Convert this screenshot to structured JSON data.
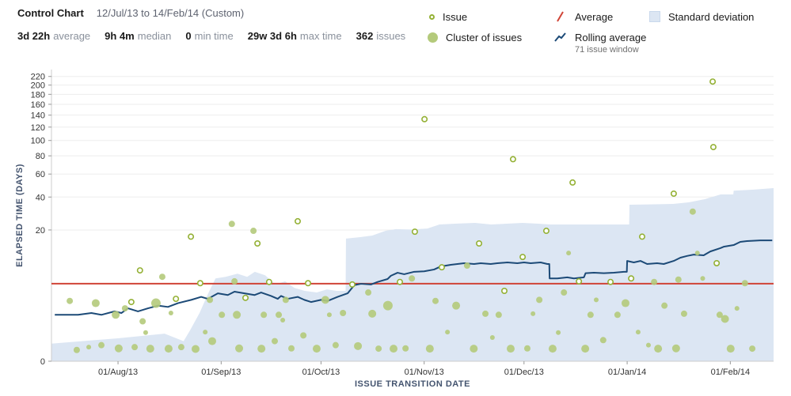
{
  "header": {
    "title": "Control Chart",
    "date_range": "12/Jul/13 to 14/Feb/14 (Custom)",
    "stats": [
      {
        "value": "3d 22h",
        "label": "average"
      },
      {
        "value": "9h 4m",
        "label": "median"
      },
      {
        "value": "0",
        "label": "min time"
      },
      {
        "value": "29w 3d 6h",
        "label": "max time"
      },
      {
        "value": "362",
        "label": "issues"
      }
    ]
  },
  "legend": {
    "issue": "Issue",
    "cluster": "Cluster of issues",
    "average": "Average",
    "rolling": "Rolling average",
    "rolling_sub": "71 issue window",
    "stddev": "Standard deviation"
  },
  "colors": {
    "issue": "#94b135",
    "cluster": "#b4ca7b",
    "average": "#d04437",
    "rolling": "#1c4a77",
    "band": "#dce6f3"
  },
  "chart_data": {
    "type": "scatter",
    "title": "Control Chart",
    "xlabel": "ISSUE TRANSITION DATE",
    "ylabel": "ELAPSED TIME (DAYS)",
    "x_start": "12/Jul/13",
    "x_end": "14/Feb/14",
    "x_days": 217,
    "y_scale": "power 0.323 (compressed at high values)",
    "ylim": [
      0,
      230
    ],
    "y_ticks": [
      0,
      20,
      40,
      60,
      80,
      100,
      120,
      140,
      160,
      180,
      200,
      220
    ],
    "x_ticks": [
      {
        "label": "01/Aug/13",
        "day": 20
      },
      {
        "label": "01/Sep/13",
        "day": 51
      },
      {
        "label": "01/Oct/13",
        "day": 81
      },
      {
        "label": "01/Nov/13",
        "day": 112
      },
      {
        "label": "01/Dec/13",
        "day": 142
      },
      {
        "label": "01/Jan/14",
        "day": 173
      },
      {
        "label": "01/Feb/14",
        "day": 204
      }
    ],
    "average": 3.92,
    "rolling_average": [
      [
        1,
        0.8
      ],
      [
        8,
        0.8
      ],
      [
        12,
        0.9
      ],
      [
        15,
        0.8
      ],
      [
        19,
        1.0
      ],
      [
        21,
        0.9
      ],
      [
        23,
        1.2
      ],
      [
        26,
        1.0
      ],
      [
        29,
        1.2
      ],
      [
        32,
        1.4
      ],
      [
        35,
        1.3
      ],
      [
        38,
        1.6
      ],
      [
        42,
        1.9
      ],
      [
        45,
        2.2
      ],
      [
        47,
        2.0
      ],
      [
        50,
        2.6
      ],
      [
        53,
        2.4
      ],
      [
        55,
        2.8
      ],
      [
        58,
        2.6
      ],
      [
        61,
        2.4
      ],
      [
        63,
        2.7
      ],
      [
        66,
        2.3
      ],
      [
        68,
        2.0
      ],
      [
        69,
        2.3
      ],
      [
        71,
        2.0
      ],
      [
        74,
        2.2
      ],
      [
        76,
        1.9
      ],
      [
        78,
        1.7
      ],
      [
        81,
        1.9
      ],
      [
        83,
        1.8
      ],
      [
        86,
        2.2
      ],
      [
        89,
        2.6
      ],
      [
        91,
        3.7
      ],
      [
        93,
        3.9
      ],
      [
        96,
        3.8
      ],
      [
        98,
        4.2
      ],
      [
        101,
        4.7
      ],
      [
        102,
        5.3
      ],
      [
        104,
        5.9
      ],
      [
        106,
        5.6
      ],
      [
        109,
        6.1
      ],
      [
        112,
        6.2
      ],
      [
        115,
        6.6
      ],
      [
        117,
        7.3
      ],
      [
        120,
        7.7
      ],
      [
        122,
        7.9
      ],
      [
        124,
        8.1
      ],
      [
        127,
        7.9
      ],
      [
        129,
        8.1
      ],
      [
        132,
        7.9
      ],
      [
        134,
        8.1
      ],
      [
        137,
        8.3
      ],
      [
        140,
        8.1
      ],
      [
        142,
        8.3
      ],
      [
        144,
        8.1
      ],
      [
        147,
        8.3
      ],
      [
        149,
        7.9
      ],
      [
        149.6,
        7.9
      ],
      [
        149.7,
        4.8
      ],
      [
        152,
        4.8
      ],
      [
        155,
        5.0
      ],
      [
        157,
        4.8
      ],
      [
        160,
        5.0
      ],
      [
        160.5,
        5.8
      ],
      [
        163,
        5.9
      ],
      [
        166,
        5.8
      ],
      [
        169,
        5.9
      ],
      [
        172,
        6.1
      ],
      [
        172.9,
        6.1
      ],
      [
        173,
        8.7
      ],
      [
        175,
        8.3
      ],
      [
        177,
        8.7
      ],
      [
        179,
        7.9
      ],
      [
        182,
        8.1
      ],
      [
        184,
        7.9
      ],
      [
        187,
        8.7
      ],
      [
        189,
        9.6
      ],
      [
        191,
        10.1
      ],
      [
        193,
        10.5
      ],
      [
        196,
        10.3
      ],
      [
        198,
        11.5
      ],
      [
        201,
        12.6
      ],
      [
        202,
        13.1
      ],
      [
        205,
        13.7
      ],
      [
        207,
        14.9
      ],
      [
        209,
        15.2
      ],
      [
        213,
        15.5
      ],
      [
        216.6,
        15.5
      ]
    ],
    "std_dev_band": [
      [
        0,
        0.04
      ],
      [
        20,
        0.09
      ],
      [
        34,
        0.16
      ],
      [
        39.7,
        0.06
      ],
      [
        41.6,
        0.22
      ],
      [
        44.5,
        0.9
      ],
      [
        47,
        2.5
      ],
      [
        49.3,
        4.8
      ],
      [
        52.3,
        5.1
      ],
      [
        55.9,
        5.7
      ],
      [
        58.8,
        5.1
      ],
      [
        61.1,
        6.1
      ],
      [
        64.2,
        5.4
      ],
      [
        67.3,
        3.8
      ],
      [
        70.2,
        4.3
      ],
      [
        73,
        3.3
      ],
      [
        76.1,
        2.9
      ],
      [
        79.7,
        2.7
      ],
      [
        82.8,
        3.1
      ],
      [
        85.7,
        2.9
      ],
      [
        88.4,
        2.9
      ],
      [
        88.5,
        16.2
      ],
      [
        92.8,
        16.8
      ],
      [
        96.4,
        17.5
      ],
      [
        100.4,
        19.6
      ],
      [
        103.5,
        20.4
      ],
      [
        108.3,
        20.2
      ],
      [
        113,
        20.7
      ],
      [
        116.6,
        22.7
      ],
      [
        121.3,
        23.1
      ],
      [
        127.3,
        23.5
      ],
      [
        132.1,
        22.7
      ],
      [
        136.8,
        23.1
      ],
      [
        141.6,
        23.5
      ],
      [
        146.3,
        23.1
      ],
      [
        149.9,
        22.7
      ],
      [
        173.6,
        22.7
      ],
      [
        173.7,
        34.5
      ],
      [
        179.6,
        34.7
      ],
      [
        186.8,
        35
      ],
      [
        191.5,
        36.1
      ],
      [
        196.3,
        38.4
      ],
      [
        201.1,
        42
      ],
      [
        204.9,
        42
      ],
      [
        205,
        45
      ],
      [
        210.6,
        45.8
      ],
      [
        217,
        47.1
      ]
    ],
    "points": [
      [
        5.5,
        1.8,
        "c",
        4
      ],
      [
        7.6,
        0.01,
        "c",
        4
      ],
      [
        11.2,
        0.02,
        "c",
        3
      ],
      [
        13.3,
        1.6,
        "c",
        5
      ],
      [
        15,
        0.03,
        "c",
        4
      ],
      [
        19.3,
        0.8,
        "c",
        5
      ],
      [
        20.2,
        0.015,
        "c",
        5
      ],
      [
        22.1,
        1.2,
        "c",
        4
      ],
      [
        24,
        1.7,
        "i",
        0
      ],
      [
        25,
        0.02,
        "c",
        4
      ],
      [
        26.6,
        6.4,
        "i",
        0
      ],
      [
        27.4,
        0.5,
        "c",
        4
      ],
      [
        28.3,
        0.18,
        "c",
        3
      ],
      [
        29.7,
        0.014,
        "c",
        5
      ],
      [
        31.4,
        1.6,
        "c",
        6
      ],
      [
        33.3,
        5.1,
        "c",
        4
      ],
      [
        35.2,
        0.014,
        "c",
        5
      ],
      [
        35.9,
        0.9,
        "c",
        3
      ],
      [
        37.4,
        2,
        "i",
        0
      ],
      [
        39,
        0.02,
        "c",
        4
      ],
      [
        41.9,
        17,
        "i",
        0
      ],
      [
        43.3,
        0.013,
        "c",
        5
      ],
      [
        44.7,
        4,
        "i",
        0
      ],
      [
        46.2,
        0.19,
        "c",
        3
      ],
      [
        47.6,
        1.9,
        "c",
        4
      ],
      [
        48.3,
        0.06,
        "c",
        5
      ],
      [
        51.2,
        0.8,
        "c",
        4
      ],
      [
        54.2,
        23,
        "c",
        4
      ],
      [
        55,
        4.3,
        "c",
        4
      ],
      [
        55.7,
        0.8,
        "c",
        5
      ],
      [
        56.4,
        0.015,
        "c",
        5
      ],
      [
        58.3,
        2.1,
        "i",
        0
      ],
      [
        60.7,
        19.6,
        "c",
        4
      ],
      [
        61.9,
        14.3,
        "i",
        0
      ],
      [
        63.1,
        0.014,
        "c",
        5
      ],
      [
        63.8,
        0.8,
        "c",
        4
      ],
      [
        65.4,
        4.2,
        "i",
        0
      ],
      [
        67.1,
        0.06,
        "c",
        4
      ],
      [
        68.3,
        0.8,
        "c",
        4
      ],
      [
        69.5,
        0.55,
        "c",
        3
      ],
      [
        70.4,
        1.9,
        "c",
        4
      ],
      [
        72.1,
        0.015,
        "c",
        4
      ],
      [
        74,
        24.4,
        "i",
        0
      ],
      [
        75.7,
        0.13,
        "c",
        4
      ],
      [
        77.1,
        4,
        "i",
        0
      ],
      [
        79.7,
        0.014,
        "c",
        5
      ],
      [
        82.3,
        1.9,
        "c",
        5
      ],
      [
        83.5,
        0.8,
        "c",
        3
      ],
      [
        85.4,
        0.03,
        "c",
        4
      ],
      [
        87.6,
        0.9,
        "c",
        4
      ],
      [
        90.4,
        3.8,
        "i",
        0
      ],
      [
        92.1,
        0.025,
        "c",
        5
      ],
      [
        95.2,
        2.7,
        "c",
        4
      ],
      [
        96.4,
        0.86,
        "c",
        5
      ],
      [
        98.3,
        0.014,
        "c",
        4
      ],
      [
        101.1,
        1.4,
        "c",
        6
      ],
      [
        102.8,
        0.014,
        "c",
        5
      ],
      [
        104.7,
        4.2,
        "i",
        0
      ],
      [
        106.4,
        0.015,
        "c",
        4
      ],
      [
        108.3,
        4.8,
        "c",
        4
      ],
      [
        109.2,
        19.2,
        "i",
        0
      ],
      [
        112.1,
        133,
        "i",
        0
      ],
      [
        113.7,
        0.014,
        "c",
        5
      ],
      [
        115.4,
        1.8,
        "c",
        4
      ],
      [
        117.3,
        7.1,
        "i",
        0
      ],
      [
        119,
        0.19,
        "c",
        3
      ],
      [
        121.6,
        1.4,
        "c",
        5
      ],
      [
        124.9,
        7.5,
        "c",
        4
      ],
      [
        126.9,
        0.014,
        "c",
        5
      ],
      [
        128.5,
        14.3,
        "i",
        0
      ],
      [
        130.4,
        0.86,
        "c",
        4
      ],
      [
        132.5,
        0.1,
        "c",
        3
      ],
      [
        134.4,
        0.8,
        "c",
        4
      ],
      [
        136.1,
        2.9,
        "i",
        0
      ],
      [
        138,
        0.014,
        "c",
        5
      ],
      [
        138.7,
        76,
        "i",
        0
      ],
      [
        141.6,
        9.8,
        "i",
        0
      ],
      [
        143,
        0.015,
        "c",
        4
      ],
      [
        144.7,
        0.86,
        "c",
        3
      ],
      [
        146.6,
        1.9,
        "c",
        4
      ],
      [
        148.7,
        19.6,
        "i",
        0
      ],
      [
        150.6,
        0.014,
        "c",
        5
      ],
      [
        152.3,
        0.18,
        "c",
        3
      ],
      [
        154,
        2.7,
        "c",
        4
      ],
      [
        155.4,
        11,
        "c",
        3
      ],
      [
        156.6,
        52,
        "i",
        0
      ],
      [
        158.5,
        4.3,
        "i",
        0
      ],
      [
        160.4,
        0.014,
        "c",
        5
      ],
      [
        162,
        0.8,
        "c",
        4
      ],
      [
        163.7,
        1.9,
        "c",
        3
      ],
      [
        165.8,
        0.07,
        "c",
        4
      ],
      [
        168,
        4.2,
        "i",
        0
      ],
      [
        170.1,
        0.8,
        "c",
        4
      ],
      [
        172.5,
        1.6,
        "c",
        5
      ],
      [
        174.2,
        4.8,
        "i",
        0
      ],
      [
        176.3,
        0.19,
        "c",
        3
      ],
      [
        177.5,
        17,
        "i",
        0
      ],
      [
        179.4,
        0.03,
        "c",
        3
      ],
      [
        181.1,
        4.2,
        "c",
        4
      ],
      [
        182.3,
        0.014,
        "c",
        5
      ],
      [
        184.2,
        1.4,
        "c",
        4
      ],
      [
        187,
        42.6,
        "i",
        0
      ],
      [
        187.7,
        0.015,
        "c",
        5
      ],
      [
        188.4,
        4.6,
        "c",
        4
      ],
      [
        190.1,
        0.86,
        "c",
        4
      ],
      [
        192.7,
        30,
        "c",
        4
      ],
      [
        194.1,
        11,
        "c",
        3
      ],
      [
        195.7,
        4.8,
        "c",
        3
      ],
      [
        198.7,
        208,
        "i",
        0
      ],
      [
        198.9,
        91,
        "i",
        0
      ],
      [
        199.9,
        8.1,
        "i",
        0
      ],
      [
        200.8,
        0.8,
        "c",
        4
      ],
      [
        202.4,
        0.6,
        "c",
        5
      ],
      [
        204.1,
        0.014,
        "c",
        5
      ],
      [
        206,
        1.2,
        "c",
        3
      ],
      [
        208.4,
        4,
        "c",
        4
      ],
      [
        210.6,
        0.014,
        "c",
        4
      ]
    ]
  }
}
